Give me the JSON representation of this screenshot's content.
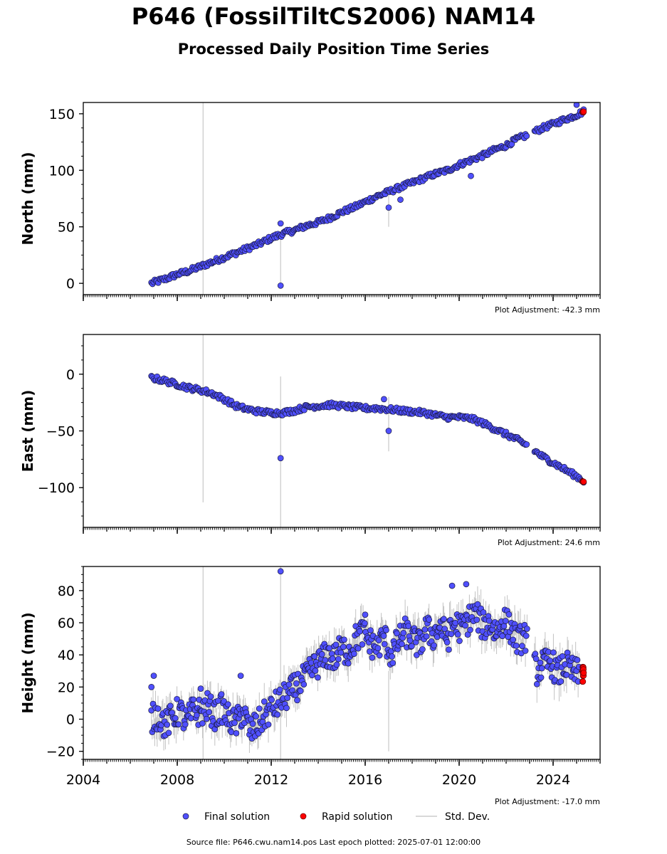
{
  "title": "P646 (FossilTiltCS2006) NAM14",
  "subtitle": "Processed Daily Position Time Series",
  "footer": "Source file: P646.cwu.nam14.pos  Last epoch plotted: 2025-07-01 12:00:00",
  "colors": {
    "final": "#5050ff",
    "final_edge": "#1a1a40",
    "rapid": "#ff0000",
    "std_dev": "#cccccc"
  },
  "legend": [
    {
      "label": "Final solution",
      "marker": "dot",
      "color": "#5050ff"
    },
    {
      "label": "Rapid solution",
      "marker": "dot",
      "color": "#ff0000"
    },
    {
      "label": "Std. Dev.",
      "marker": "line",
      "color": "#cccccc"
    }
  ],
  "chart_data": [
    {
      "type": "scatter",
      "ylabel": "North (mm)",
      "adjustment": "Plot Adjustment: -42.3 mm",
      "xlim": [
        2004.0,
        2026.0
      ],
      "ylim": [
        -10,
        160
      ],
      "yticks": [
        0,
        50,
        100,
        150
      ],
      "xticks": [
        2004,
        2008,
        2012,
        2016,
        2020,
        2024
      ],
      "show_xticklabels": false,
      "series": [
        {
          "role": "final",
          "x": [
            2006.9,
            2007.5,
            2008.0,
            2008.5,
            2009.0,
            2009.5,
            2010.0,
            2010.5,
            2011.0,
            2011.5,
            2012.0,
            2012.5,
            2013.0,
            2013.5,
            2014.0,
            2014.5,
            2015.0,
            2015.5,
            2016.0,
            2016.5,
            2017.0,
            2017.5,
            2018.0,
            2018.5,
            2019.0,
            2019.5,
            2020.0,
            2020.5,
            2021.0,
            2021.5,
            2022.0,
            2022.5,
            2023.0,
            2023.5,
            2024.0,
            2024.5,
            2025.0,
            2025.3
          ],
          "y": [
            0,
            4,
            8,
            11,
            15,
            19,
            23,
            27,
            31,
            35,
            40,
            44,
            47,
            51,
            54,
            58,
            63,
            67,
            72,
            77,
            81,
            85,
            89,
            93,
            97,
            100,
            105,
            109,
            113,
            118,
            122,
            128,
            132,
            137,
            141,
            145,
            149,
            152
          ]
        },
        {
          "role": "outliers",
          "x": [
            2012.4,
            2012.4,
            2017.0,
            2017.5,
            2020.5,
            2025.0
          ],
          "y": [
            -2,
            53,
            67,
            74,
            95,
            158
          ]
        },
        {
          "role": "rapid",
          "x": [
            2025.25,
            2025.3
          ],
          "y": [
            151,
            152
          ]
        }
      ]
    },
    {
      "type": "scatter",
      "ylabel": "East (mm)",
      "adjustment": "Plot Adjustment: 24.6 mm",
      "xlim": [
        2004.0,
        2026.0
      ],
      "ylim": [
        -135,
        35
      ],
      "yticks": [
        -100,
        -50,
        0
      ],
      "xticks": [
        2004,
        2008,
        2012,
        2016,
        2020,
        2024
      ],
      "show_xticklabels": false,
      "series": [
        {
          "role": "final",
          "x": [
            2006.9,
            2007.5,
            2008.0,
            2008.5,
            2009.0,
            2009.5,
            2010.0,
            2010.5,
            2011.0,
            2011.5,
            2012.0,
            2012.5,
            2013.0,
            2013.5,
            2014.0,
            2014.5,
            2015.0,
            2015.5,
            2016.0,
            2016.5,
            2017.0,
            2017.5,
            2018.0,
            2018.5,
            2019.0,
            2019.5,
            2020.0,
            2020.5,
            2021.0,
            2021.5,
            2022.0,
            2022.5,
            2023.0,
            2023.5,
            2024.0,
            2024.5,
            2025.0,
            2025.3
          ],
          "y": [
            -3,
            -6,
            -9,
            -12,
            -14,
            -17,
            -22,
            -28,
            -31,
            -33,
            -34,
            -34,
            -32,
            -29,
            -28,
            -27,
            -28,
            -29,
            -30,
            -30,
            -31,
            -32,
            -33,
            -34,
            -36,
            -38,
            -38,
            -39,
            -43,
            -48,
            -53,
            -58,
            -64,
            -72,
            -78,
            -84,
            -90,
            -94
          ]
        },
        {
          "role": "outliers",
          "x": [
            2012.4,
            2016.8,
            2017.0
          ],
          "y": [
            -74,
            -22,
            -50
          ]
        },
        {
          "role": "rapid",
          "x": [
            2025.25,
            2025.3
          ],
          "y": [
            -94,
            -95
          ]
        }
      ]
    },
    {
      "type": "scatter",
      "ylabel": "Height (mm)",
      "adjustment": "Plot Adjustment: -17.0 mm",
      "xlim": [
        2004.0,
        2026.0
      ],
      "ylim": [
        -25,
        95
      ],
      "yticks": [
        -20,
        0,
        20,
        40,
        60,
        80
      ],
      "xticks": [
        2004,
        2008,
        2012,
        2016,
        2020,
        2024
      ],
      "xticklabels": [
        "2004",
        "2008",
        "2012",
        "2016",
        "2020",
        "2024"
      ],
      "show_xticklabels": true,
      "series": [
        {
          "role": "final",
          "x": [
            2006.9,
            2007.2,
            2007.5,
            2007.8,
            2008.1,
            2008.4,
            2008.7,
            2009.0,
            2009.3,
            2009.6,
            2009.9,
            2010.2,
            2010.5,
            2010.8,
            2011.1,
            2011.4,
            2011.7,
            2012.0,
            2012.3,
            2012.6,
            2012.9,
            2013.2,
            2013.5,
            2013.8,
            2014.1,
            2014.4,
            2014.7,
            2015.0,
            2015.3,
            2015.6,
            2015.9,
            2016.2,
            2016.5,
            2016.8,
            2017.1,
            2017.4,
            2017.7,
            2018.0,
            2018.3,
            2018.6,
            2018.9,
            2019.2,
            2019.5,
            2019.8,
            2020.1,
            2020.4,
            2020.7,
            2021.0,
            2021.3,
            2021.6,
            2021.9,
            2022.2,
            2022.5,
            2022.8,
            2023.3,
            2023.6,
            2023.9,
            2024.2,
            2024.5,
            2024.8,
            2025.1
          ],
          "y": [
            0,
            3,
            -4,
            2,
            5,
            -2,
            6,
            4,
            8,
            2,
            7,
            0,
            -3,
            5,
            -8,
            -4,
            2,
            6,
            10,
            14,
            18,
            22,
            26,
            32,
            36,
            40,
            38,
            44,
            42,
            50,
            54,
            48,
            44,
            52,
            40,
            48,
            54,
            50,
            46,
            56,
            52,
            58,
            50,
            60,
            56,
            62,
            66,
            58,
            60,
            54,
            62,
            56,
            48,
            52,
            30,
            34,
            36,
            28,
            34,
            30,
            28
          ]
        },
        {
          "role": "outliers",
          "x": [
            2006.9,
            2007.0,
            2009.0,
            2010.7,
            2012.4,
            2016.0,
            2019.7,
            2020.3
          ],
          "y": [
            20,
            27,
            19,
            27,
            92,
            65,
            83,
            84
          ]
        },
        {
          "role": "rapid",
          "x": [
            2025.25,
            2025.3
          ],
          "y": [
            22,
            35
          ]
        }
      ]
    }
  ]
}
